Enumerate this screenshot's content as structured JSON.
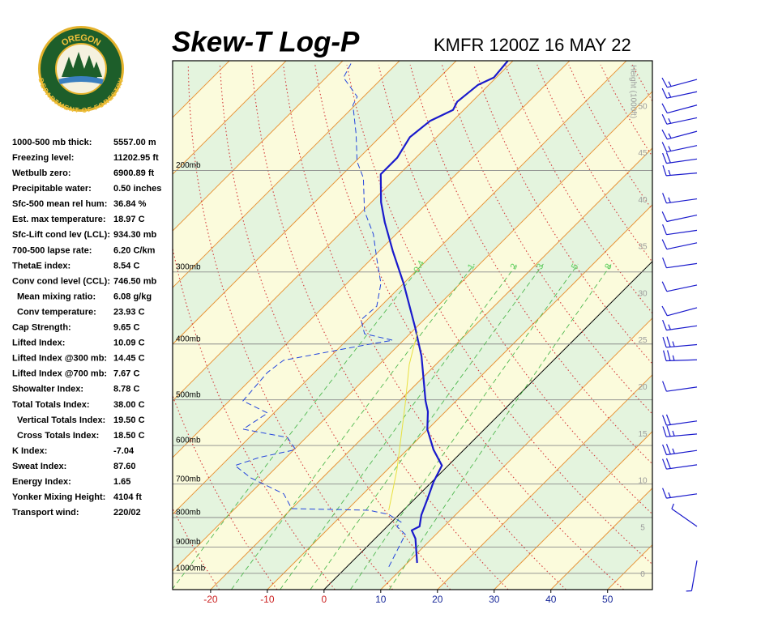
{
  "chart_data": {
    "type": "skew-t",
    "title": "Skew-T Log-P",
    "subtitle": "KMFR 1200Z 16 MAY 22",
    "logo": {
      "top": "OREGON",
      "bottom": "DEPARTMENT OF FORESTRY"
    },
    "xlim": [
      -26.7,
      57.9
    ],
    "xticks": [
      -20,
      -10,
      0,
      10,
      20,
      30,
      40,
      50
    ],
    "ylim": [
      1067,
      129
    ],
    "log_y": true,
    "pressure_levels": [
      {
        "value": 200,
        "label": "200mb"
      },
      {
        "value": 300,
        "label": "300mb"
      },
      {
        "value": 400,
        "label": "400mb"
      },
      {
        "value": 500,
        "label": "500mb"
      },
      {
        "value": 600,
        "label": "600mb"
      },
      {
        "value": 700,
        "label": "700mb"
      },
      {
        "value": 800,
        "label": "800mb"
      },
      {
        "value": 900,
        "label": "900mb"
      },
      {
        "value": 1000,
        "label": "1000mb"
      }
    ],
    "height_label": "Height (1000ft)",
    "hlim": [
      -1.6,
      54.9
    ],
    "hticks": [
      0,
      5,
      10,
      15,
      20,
      25,
      30,
      35,
      40,
      45,
      50
    ],
    "mixing_ratios": [
      0.4,
      1,
      2,
      3,
      5,
      8
    ],
    "series": [
      {
        "color": "#1a1acc",
        "pressure": [
          959,
          870,
          842,
          829,
          792,
          747,
          694,
          650,
          610,
          562,
          524,
          502,
          420,
          375,
          314,
          276,
          246,
          227,
          203,
          190,
          175,
          164,
          157,
          152,
          142,
          138,
          129
        ],
        "values": [
          11.7,
          7.1,
          5.0,
          5.7,
          4.0,
          2.4,
          0.3,
          -1.1,
          -5.4,
          -10.1,
          -13.1,
          -15.4,
          -24.0,
          -30.1,
          -40.0,
          -47.6,
          -54.1,
          -58.3,
          -63.3,
          -63.3,
          -64.7,
          -64.0,
          -61.9,
          -62.6,
          -61.9,
          -60.4,
          -60.9
        ]
      },
      {
        "color": "#2244dd",
        "dashed": true,
        "pressure": [
          974,
          913,
          856,
          829,
          815,
          790,
          777,
          772,
          728,
          683,
          650,
          629,
          610,
          581,
          562,
          527,
          502,
          448,
          427,
          404,
          394,
          384,
          363,
          344,
          314,
          285,
          258,
          235,
          206,
          193,
          173,
          154,
          149,
          138,
          129
        ],
        "values": [
          7.4,
          6.0,
          4.6,
          1.7,
          1.7,
          -1.9,
          -6.1,
          -20.0,
          -24.0,
          -32.6,
          -37.6,
          -34.7,
          -29.7,
          -33.3,
          -42.6,
          -41.1,
          -47.6,
          -48.3,
          -47.6,
          -37.1,
          -31.9,
          -38.0,
          -41.1,
          -40.7,
          -44.0,
          -49.0,
          -54.0,
          -59.7,
          -65.7,
          -69.7,
          -74.7,
          -80.4,
          -81.1,
          -86.9,
          -88.3
        ]
      },
      {
        "color": "#e8e040",
        "pressure": [
          777,
          661,
          510,
          434,
          381
        ],
        "values": [
          -2.6,
          -8.3,
          -18.3,
          -24.7,
          -29.0
        ]
      }
    ],
    "winds": {
      "pressure": [
        139,
        146,
        154,
        162,
        171,
        181,
        191,
        202,
        224,
        239,
        254,
        267,
        290,
        316,
        346,
        372,
        401,
        426,
        475,
        544,
        573,
        612,
        648,
        728,
        829,
        950
      ],
      "direction": [
        255,
        258,
        255,
        258,
        255,
        258,
        262,
        265,
        262,
        258,
        262,
        258,
        262,
        258,
        255,
        262,
        265,
        268,
        262,
        262,
        265,
        262,
        262,
        262,
        305,
        190
      ],
      "speed": [
        15,
        15,
        10,
        15,
        15,
        15,
        20,
        15,
        15,
        10,
        10,
        10,
        10,
        10,
        10,
        15,
        25,
        25,
        10,
        20,
        25,
        25,
        20,
        15,
        5,
        5
      ],
      "color": "#1a1acc"
    },
    "stats": [
      [
        "1000-500 mb thick:",
        "5557.00 m"
      ],
      [
        "Freezing level:",
        "11202.95 ft"
      ],
      [
        "Wetbulb zero:",
        "6900.89 ft"
      ],
      [
        "Precipitable water:",
        "0.50 inches"
      ],
      [
        "Sfc-500 mean rel hum:",
        "36.84 %"
      ],
      [
        "Est. max temperature:",
        "18.97 C"
      ],
      [
        "Sfc-Lift cond lev (LCL):",
        "934.30 mb"
      ],
      [
        "700-500 lapse rate:",
        "6.20 C/km"
      ],
      [
        "ThetaE index:",
        "8.54 C"
      ],
      [
        "Conv cond level (CCL):",
        "746.50 mb"
      ],
      [
        "Mean mixing ratio:",
        "6.08 g/kg"
      ],
      [
        "Conv temperature:",
        "23.93 C"
      ],
      [
        "Cap Strength:",
        "9.65 C"
      ],
      [
        "Lifted Index:",
        "10.09 C"
      ],
      [
        "Lifted Index @300 mb:",
        "14.45 C"
      ],
      [
        "Lifted Index @700 mb:",
        "7.67 C"
      ],
      [
        "Showalter Index:",
        "8.78 C"
      ],
      [
        "Total Totals Index:",
        "38.00 C"
      ],
      [
        "Vertical Totals Index:",
        "19.50 C"
      ],
      [
        "Cross Totals Index:",
        "18.50 C"
      ],
      [
        "K Index:",
        "-7.04"
      ],
      [
        "Sweat Index:",
        "87.60"
      ],
      [
        "Energy Index:",
        "1.65"
      ],
      [
        "Yonker Mixing Height:",
        "4104 ft"
      ],
      [
        "Transport wind:",
        "220/02"
      ]
    ]
  }
}
